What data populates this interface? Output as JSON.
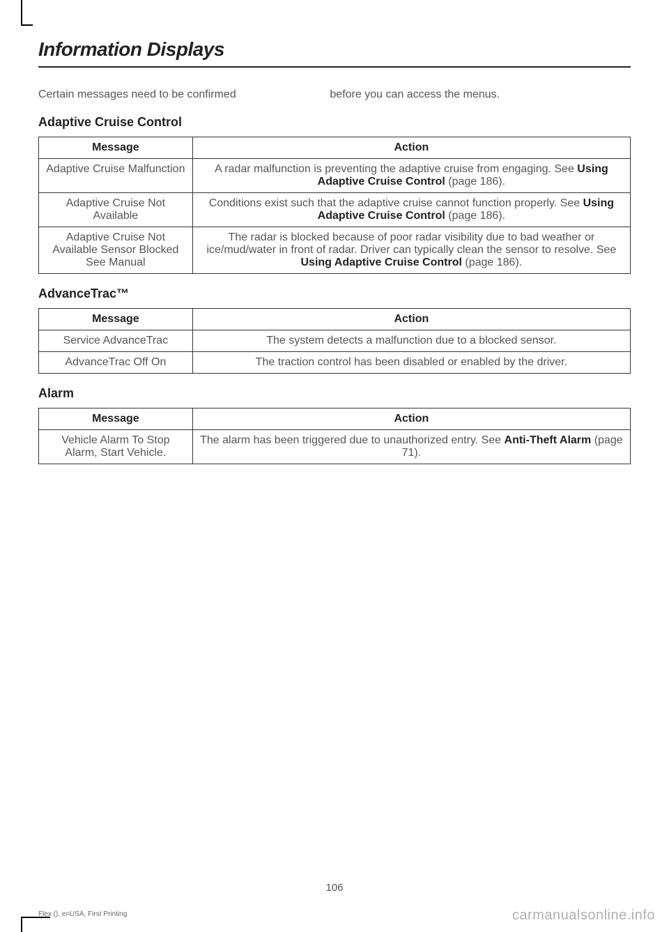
{
  "page": {
    "title": "Information Displays",
    "intro_col1": "Certain messages need to be confirmed",
    "intro_col2": "before you can access the menus.",
    "page_number": "106",
    "footer_left": "Flex (), enUSA, First Printing",
    "watermark": "carmanualsonline.info"
  },
  "sections": {
    "acc": {
      "heading": "Adaptive Cruise Control",
      "col_msg": "Message",
      "col_action": "Action",
      "rows": {
        "r0": {
          "msg": "Adaptive Cruise Malfunction",
          "action_pre": "A radar malfunction is preventing the adaptive cruise from engaging.  See ",
          "action_bold": "Using Adaptive Cruise Control",
          "action_post": " (page 186)."
        },
        "r1": {
          "msg": "Adaptive Cruise Not Available",
          "action_pre": "Conditions exist such that the adaptive cruise cannot function properly.  See ",
          "action_bold": "Using Adaptive Cruise Control",
          "action_post": " (page 186)."
        },
        "r2": {
          "msg": "Adaptive Cruise Not Available Sensor Blocked See Manual",
          "action_pre": "The radar is blocked because of poor radar visibility due to bad weather or ice/mud/water in front of radar. Driver can typically clean the sensor to resolve.  See ",
          "action_bold": "Using Adaptive Cruise Control",
          "action_post": " (page 186)."
        }
      }
    },
    "adv": {
      "heading": "AdvanceTrac™",
      "col_msg": "Message",
      "col_action": "Action",
      "rows": {
        "r0": {
          "msg": "Service AdvanceTrac",
          "action": "The system detects a malfunction due to a blocked sensor."
        },
        "r1": {
          "msg": "AdvanceTrac Off On",
          "action": "The traction control has been disabled or enabled by the driver."
        }
      }
    },
    "alarm": {
      "heading": "Alarm",
      "col_msg": "Message",
      "col_action": "Action",
      "rows": {
        "r0": {
          "msg": "Vehicle Alarm To Stop Alarm, Start Vehicle.",
          "action_pre": "The alarm has been triggered due to unauthorized entry.  See ",
          "action_bold": "Anti-Theft Alarm",
          "action_post": " (page 71)."
        }
      }
    }
  }
}
